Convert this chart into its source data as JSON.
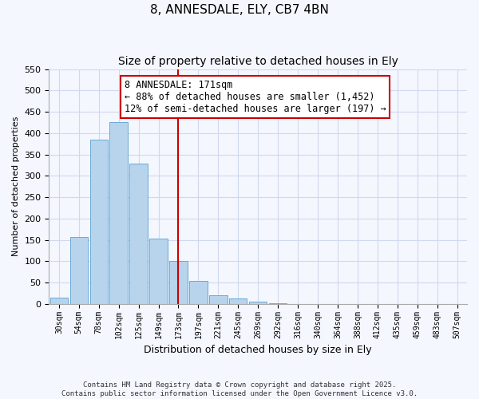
{
  "title": "8, ANNESDALE, ELY, CB7 4BN",
  "subtitle": "Size of property relative to detached houses in Ely",
  "xlabel": "Distribution of detached houses by size in Ely",
  "ylabel": "Number of detached properties",
  "bar_labels": [
    "30sqm",
    "54sqm",
    "78sqm",
    "102sqm",
    "125sqm",
    "149sqm",
    "173sqm",
    "197sqm",
    "221sqm",
    "245sqm",
    "269sqm",
    "292sqm",
    "316sqm",
    "340sqm",
    "364sqm",
    "388sqm",
    "412sqm",
    "435sqm",
    "459sqm",
    "483sqm",
    "507sqm"
  ],
  "bar_values": [
    15,
    157,
    385,
    425,
    328,
    153,
    101,
    53,
    21,
    12,
    5,
    1,
    0,
    0,
    0,
    0,
    0,
    0,
    0,
    0,
    0
  ],
  "bar_color": "#b8d4ed",
  "bar_edge_color": "#6aaad4",
  "vline_color": "#cc0000",
  "ylim": [
    0,
    550
  ],
  "yticks": [
    0,
    50,
    100,
    150,
    200,
    250,
    300,
    350,
    400,
    450,
    500,
    550
  ],
  "annotation_title": "8 ANNESDALE: 171sqm",
  "annotation_line1": "← 88% of detached houses are smaller (1,452)",
  "annotation_line2": "12% of semi-detached houses are larger (197) →",
  "annotation_box_color": "#ffffff",
  "annotation_box_edge": "#cc0000",
  "footer_line1": "Contains HM Land Registry data © Crown copyright and database right 2025.",
  "footer_line2": "Contains public sector information licensed under the Open Government Licence v3.0.",
  "bg_color": "#f5f7ff",
  "grid_color": "#d0d8ee",
  "title_fontsize": 11,
  "subtitle_fontsize": 10
}
